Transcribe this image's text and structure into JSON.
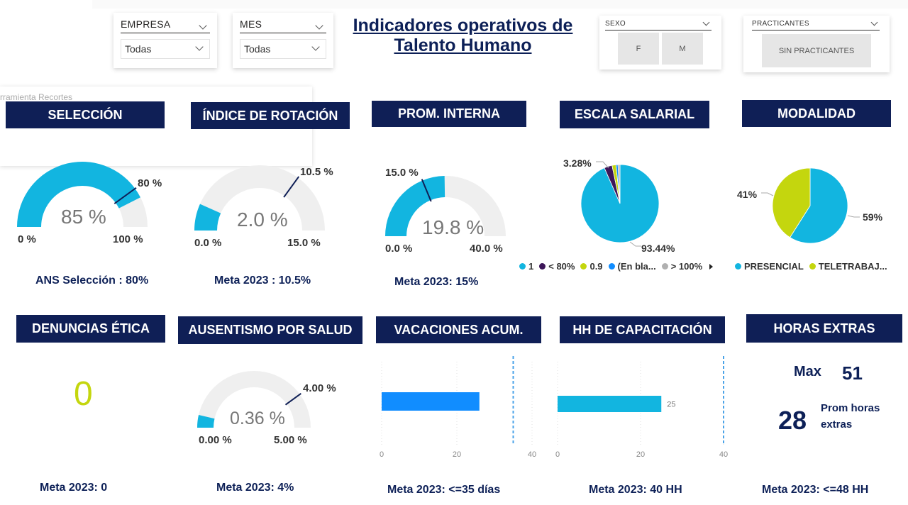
{
  "slicers": {
    "empresa": {
      "label": "EMPRESA",
      "value": "Todas"
    },
    "mes": {
      "label": "MES",
      "value": "Todas"
    },
    "sexo": {
      "label": "SEXO",
      "options": [
        "F",
        "M"
      ]
    },
    "practicantes": {
      "label": "PRACTICANTES",
      "option": "SIN PRACTICANTES"
    }
  },
  "title": {
    "line1": "Indicadores operativos de",
    "line2": "Talento Humano"
  },
  "ghost_text": "rramienta Recortes",
  "colors": {
    "navy": "#0f1f56",
    "cyan": "#12b5e0",
    "lime": "#c4d60e",
    "blue": "#118dff",
    "gauge_bg": "#efefef",
    "purple": "#3d1659",
    "grey": "#b0b0b0"
  },
  "headers": {
    "seleccion": "SELECCIÓN",
    "rotacion": "ÍNDICE DE ROTACIÓN",
    "prom_interna": "PROM. INTERNA",
    "escala": "ESCALA SALARIAL",
    "modalidad": "MODALIDAD",
    "denuncias": "DENUNCIAS ÉTICA",
    "ausentismo": "AUSENTISMO POR SALUD",
    "vacaciones": "VACACIONES ACUM.",
    "capacitacion": "HH DE CAPACITACIÓN",
    "horas_extras": "HORAS EXTRAS"
  },
  "gauges": {
    "seleccion": {
      "value": "85 %",
      "value_num": 85,
      "min": 0,
      "max": 100,
      "target": 80,
      "min_label": "0 %",
      "max_label": "100 %",
      "target_label": "80 %"
    },
    "rotacion": {
      "value": "2.0 %",
      "value_num": 2.0,
      "min": 0,
      "max": 15,
      "target": 10.5,
      "min_label": "0.0 %",
      "max_label": "15.0 %",
      "target_label": "10.5 %"
    },
    "prom_interna": {
      "value": "19.8 %",
      "value_num": 19.8,
      "min": 0,
      "max": 40,
      "target": 15,
      "min_label": "0.0 %",
      "max_label": "40.0 %",
      "target_label": "15.0 %"
    },
    "ausentismo": {
      "value": "0.36 %",
      "value_num": 0.36,
      "min": 0,
      "max": 5,
      "target": 4,
      "min_label": "0.00 %",
      "max_label": "5.00 %",
      "target_label": "4.00 %"
    }
  },
  "metas": {
    "seleccion": "ANS Selección : 80%",
    "rotacion": "Meta 2023 : 10.5%",
    "prom_interna": "Meta 2023: 15%",
    "denuncias": "Meta 2023: 0",
    "ausentismo": "Meta 2023: 4%",
    "vacaciones": "Meta 2023: <=35 días",
    "capacitacion": "Meta 2023: 40 HH",
    "horas_extras": "Meta 2023: <=48 HH"
  },
  "pie_escala": {
    "label_small": "3.28%",
    "label_big": "93.44%",
    "slices": [
      {
        "name": "1",
        "value": 93.44,
        "color": "#12b5e0"
      },
      {
        "name": "< 80%",
        "value": 3.28,
        "color": "#3d1659"
      },
      {
        "name": "0.9",
        "value": 1.64,
        "color": "#c4d60e"
      },
      {
        "name": "(En bla...",
        "value": 0.82,
        "color": "#118dff"
      },
      {
        "name": "> 100%",
        "value": 0.82,
        "color": "#b0b0b0"
      }
    ]
  },
  "pie_modalidad": {
    "label_left": "41%",
    "label_right": "59%",
    "slices": [
      {
        "name": "PRESENCIAL",
        "value": 59,
        "color": "#12b5e0"
      },
      {
        "name": "TELETRABAJ...",
        "value": 41,
        "color": "#c4d60e"
      }
    ]
  },
  "denuncias_value": "0",
  "bar_vacaciones": {
    "value": 26,
    "target": 35,
    "ticks": [
      "0",
      "20",
      "40"
    ],
    "max": 40
  },
  "bar_capacitacion": {
    "value": 25,
    "target": 40,
    "ticks": [
      "0",
      "20",
      "40"
    ],
    "max": 40,
    "value_label": "25"
  },
  "horas_extras": {
    "max_label": "Max",
    "max_value": "51",
    "prom_value": "28",
    "prom_label_1": "Prom horas",
    "prom_label_2": "extras"
  },
  "chart_data": [
    {
      "type": "gauge",
      "title": "SELECCIÓN",
      "value": 85,
      "min": 0,
      "max": 100,
      "target": 80
    },
    {
      "type": "gauge",
      "title": "ÍNDICE DE ROTACIÓN",
      "value": 2.0,
      "min": 0,
      "max": 15,
      "target": 10.5
    },
    {
      "type": "gauge",
      "title": "PROM. INTERNA",
      "value": 19.8,
      "min": 0,
      "max": 40,
      "target": 15
    },
    {
      "type": "pie",
      "title": "ESCALA SALARIAL",
      "categories": [
        "1",
        "< 80%",
        "0.9",
        "(En bla...",
        "> 100%"
      ],
      "values": [
        93.44,
        3.28,
        1.64,
        0.82,
        0.82
      ]
    },
    {
      "type": "pie",
      "title": "MODALIDAD",
      "categories": [
        "PRESENCIAL",
        "TELETRABAJ..."
      ],
      "values": [
        59,
        41
      ]
    },
    {
      "type": "gauge",
      "title": "AUSENTISMO POR SALUD",
      "value": 0.36,
      "min": 0,
      "max": 5,
      "target": 4
    },
    {
      "type": "bar",
      "title": "VACACIONES ACUM.",
      "values": [
        26
      ],
      "xlim": [
        0,
        40
      ],
      "target": 35
    },
    {
      "type": "bar",
      "title": "HH DE CAPACITACIÓN",
      "values": [
        25
      ],
      "xlim": [
        0,
        40
      ],
      "target": 40
    }
  ]
}
